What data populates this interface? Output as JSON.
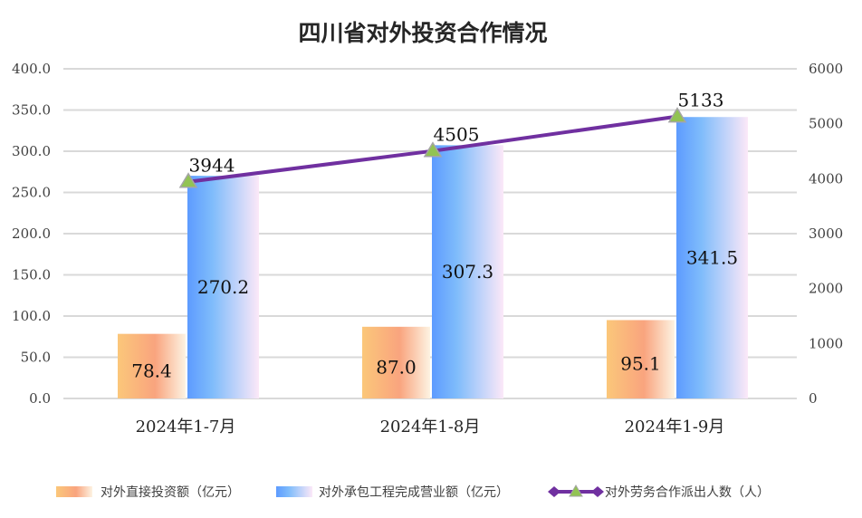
{
  "chart_data": {
    "type": "bar",
    "title": "四川省对外投资合作情况",
    "categories": [
      "2024年1-7月",
      "2024年1-8月",
      "2024年1-9月"
    ],
    "series": [
      {
        "name": "对外直接投资额（亿元）",
        "type": "bar",
        "axis": "left",
        "values": [
          78.4,
          87.0,
          95.1
        ],
        "labels": [
          "78.4",
          "87.0",
          "95.1"
        ],
        "colors": [
          "#fbc77a",
          "#f9a47e",
          "#fdf3e2"
        ]
      },
      {
        "name": "对外承包工程完成营业额（亿元）",
        "type": "bar",
        "axis": "left",
        "values": [
          270.2,
          307.3,
          341.5
        ],
        "labels": [
          "270.2",
          "307.3",
          "341.5"
        ],
        "colors": [
          "#5d9bff",
          "#7fbcfb",
          "#fce8f8"
        ]
      },
      {
        "name": "对外劳务合作派出人数（人）",
        "type": "line",
        "axis": "right",
        "values": [
          3944,
          4505,
          5133
        ],
        "labels": [
          "3944",
          "4505",
          "5133"
        ],
        "line_color": "#7030a0",
        "marker_color": "#92c353",
        "marker_edge_color": "#a5a5a5"
      }
    ],
    "y_left": {
      "range": [
        0,
        400
      ],
      "ticks": [
        0,
        50,
        100,
        150,
        200,
        250,
        300,
        350,
        400
      ],
      "tick_labels": [
        "0.0",
        "50.0",
        "100.0",
        "150.0",
        "200.0",
        "250.0",
        "300.0",
        "350.0",
        "400.0"
      ]
    },
    "y_right": {
      "range": [
        0,
        6000
      ],
      "ticks": [
        0,
        1000,
        2000,
        3000,
        4000,
        5000,
        6000
      ],
      "tick_labels": [
        "0",
        "1000",
        "2000",
        "3000",
        "4000",
        "5000",
        "6000"
      ]
    },
    "xlabel": "",
    "ylabel": "",
    "grid": true,
    "grid_color": "#d9d9d9",
    "legend_position": "bottom"
  }
}
